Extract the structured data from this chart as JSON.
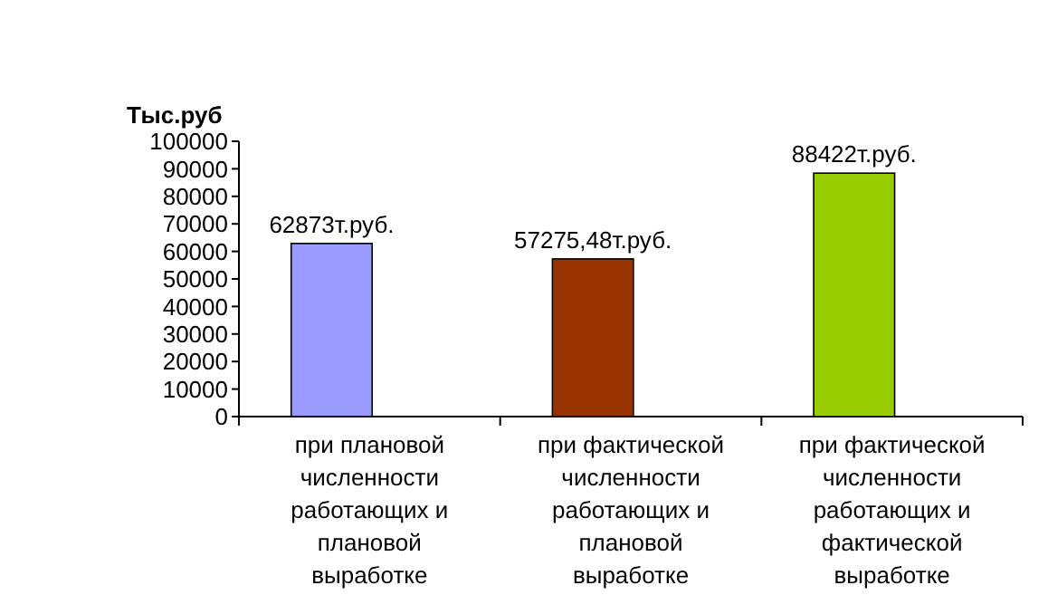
{
  "chart_data": {
    "type": "bar",
    "ylabel": "Тыс.руб",
    "categories": [
      "при плановой численности работающих и плановой выработке",
      "при фактической численности работающих и плановой выработке",
      "при фактической численности работающих и фактической выработке"
    ],
    "values": [
      62873,
      57275.48,
      88422
    ],
    "colors": [
      "#9999ff",
      "#993300",
      "#99cc00"
    ],
    "value_labels": [
      "62873т.руб.",
      "57275,48т.руб.",
      "88422т.руб."
    ],
    "ylim": [
      0,
      100000
    ],
    "yticks": [
      0,
      10000,
      20000,
      30000,
      40000,
      50000,
      60000,
      70000,
      80000,
      90000,
      100000
    ],
    "grid": false
  }
}
